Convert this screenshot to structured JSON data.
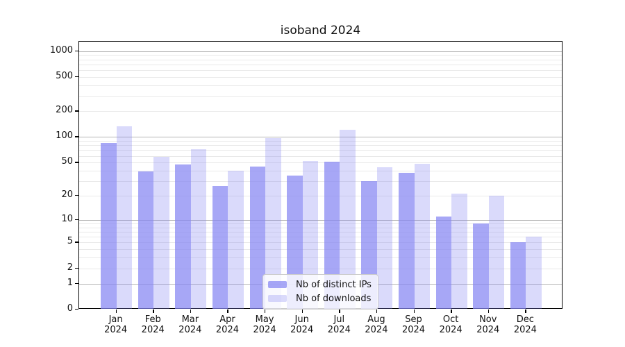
{
  "title": "isoband 2024",
  "chart_data": {
    "type": "bar",
    "title": "isoband 2024",
    "xlabel": "",
    "ylabel": "",
    "yscale": "log(v+1)",
    "grid": true,
    "legend_position": "lower center",
    "categories": [
      "Jan 2024",
      "Feb 2024",
      "Mar 2024",
      "Apr 2024",
      "May 2024",
      "Jun 2024",
      "Jul 2024",
      "Aug 2024",
      "Sep 2024",
      "Oct 2024",
      "Nov 2024",
      "Dec 2024"
    ],
    "series": [
      {
        "name": "Nb of distinct IPs",
        "color": "rgba(133,133,242,0.72)",
        "values": [
          85,
          39,
          47,
          26,
          45,
          35,
          51,
          30,
          38,
          11,
          9,
          5
        ]
      },
      {
        "name": "Nb of downloads",
        "color": "rgba(133,133,242,0.30)",
        "values": [
          134,
          58,
          72,
          40,
          97,
          52,
          122,
          44,
          48,
          21,
          20,
          6
        ]
      }
    ],
    "yticks": [
      0,
      1,
      2,
      5,
      10,
      20,
      50,
      100,
      200,
      500,
      1000
    ],
    "ylim": [
      0,
      1295
    ],
    "major_gridlines": [
      1,
      10,
      100,
      1000
    ],
    "colors": {
      "major_grid": "#b3b3b3",
      "minor_grid": "#e9e9e9",
      "spine": "#000000",
      "text": "#111111"
    }
  }
}
